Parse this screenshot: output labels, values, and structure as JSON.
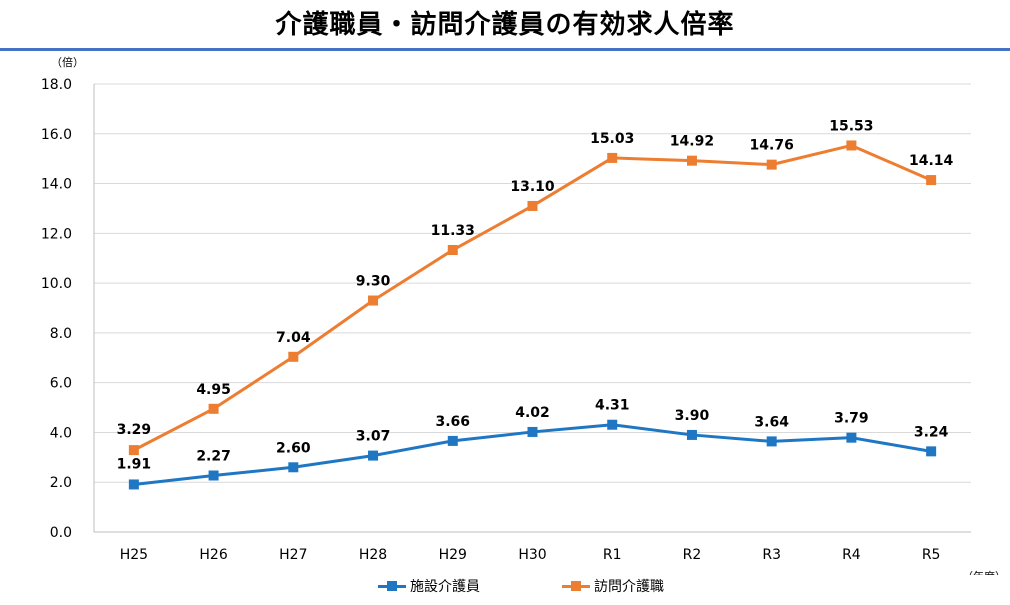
{
  "title": "介護職員・訪問介護員の有効求人倍率",
  "colors": {
    "rule": "#4472c4",
    "series1": "#1f77c4",
    "series2": "#ed7d31"
  },
  "chart_data": {
    "type": "line",
    "ylabel": "（倍）",
    "xlabel": "（年度）",
    "categories": [
      "H25",
      "H26",
      "H27",
      "H28",
      "H29",
      "H30",
      "R1",
      "R2",
      "R3",
      "R4",
      "R5"
    ],
    "ylim": [
      0,
      18
    ],
    "yticks": [
      "0.0",
      "2.0",
      "4.0",
      "6.0",
      "8.0",
      "10.0",
      "12.0",
      "14.0",
      "16.0",
      "18.0"
    ],
    "grid": true,
    "legend_position": "bottom",
    "series": [
      {
        "name": "施設介護員",
        "color": "#1f77c4",
        "marker": "square",
        "values": [
          1.91,
          2.27,
          2.6,
          3.07,
          3.66,
          4.02,
          4.31,
          3.9,
          3.64,
          3.79,
          3.24
        ],
        "labels": [
          "1.91",
          "2.27",
          "2.60",
          "3.07",
          "3.66",
          "4.02",
          "4.31",
          "3.90",
          "3.64",
          "3.79",
          "3.24"
        ]
      },
      {
        "name": "訪問介護職",
        "color": "#ed7d31",
        "marker": "square",
        "values": [
          3.29,
          4.95,
          7.04,
          9.3,
          11.33,
          13.1,
          15.03,
          14.92,
          14.76,
          15.53,
          14.14
        ],
        "labels": [
          "3.29",
          "4.95",
          "7.04",
          "9.30",
          "11.33",
          "13.10",
          "15.03",
          "14.92",
          "14.76",
          "15.53",
          "14.14"
        ]
      }
    ]
  }
}
